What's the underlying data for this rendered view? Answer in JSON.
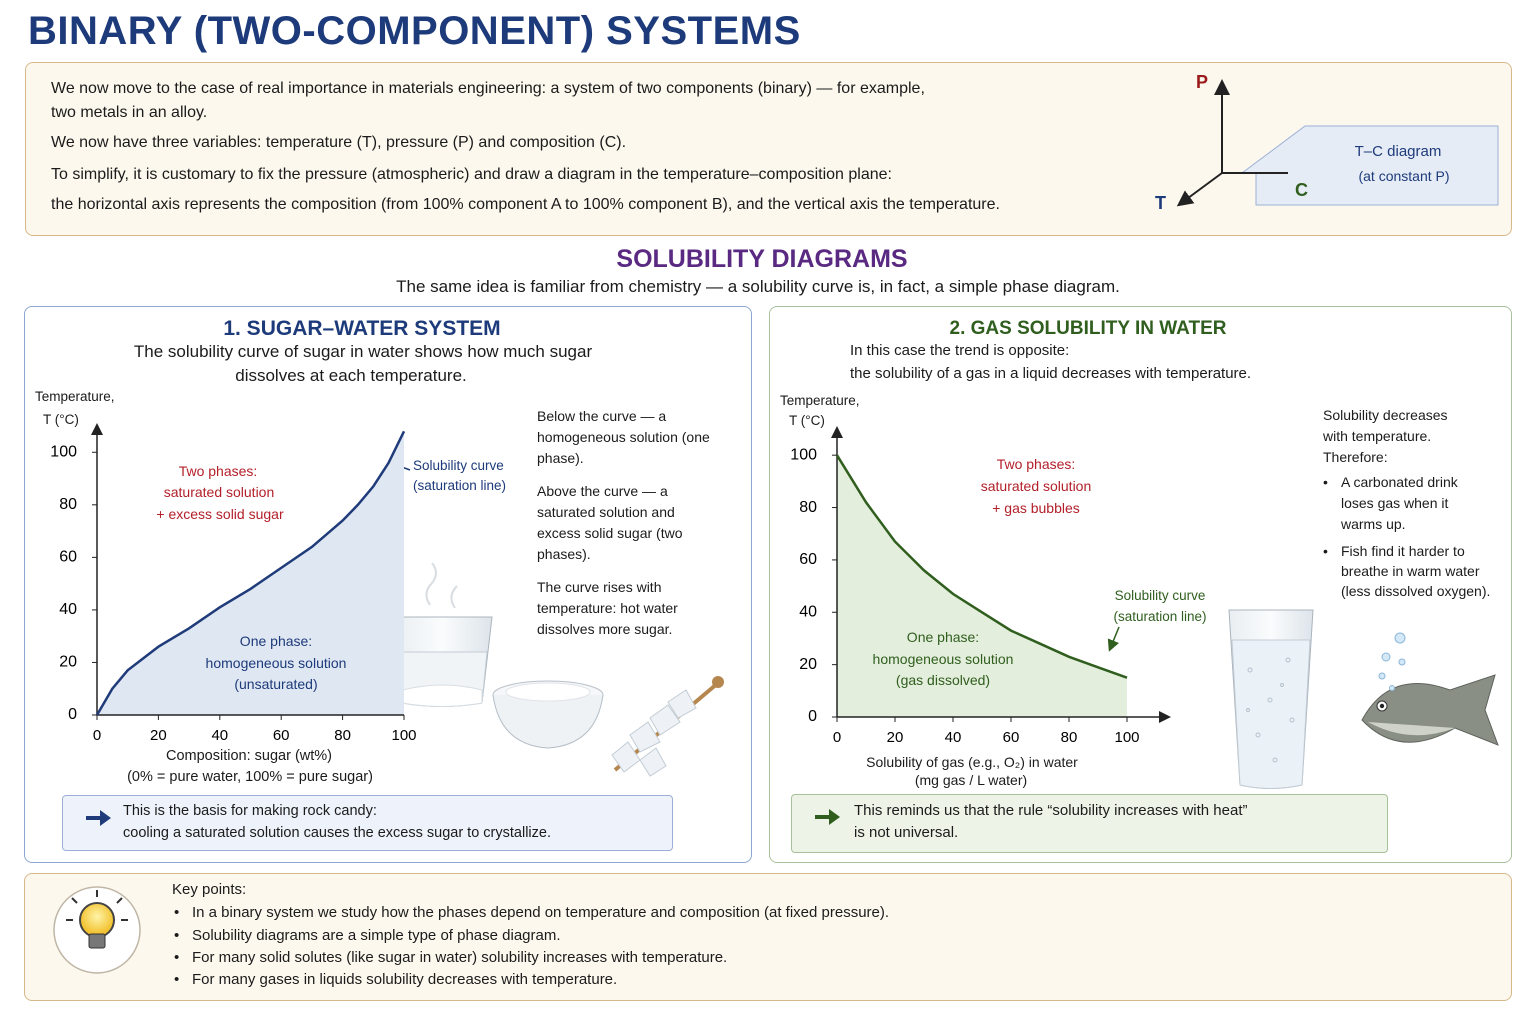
{
  "title": "BINARY (TWO-COMPONENT) SYSTEMS",
  "intro": {
    "lines": [
      "We now move to the case of real importance in materials engineering: a system of two components (binary) — for example,",
      "two metals in an alloy.",
      "We now have three variables: temperature (T), pressure (P) and composition (C).",
      "To simplify, it is customary to fix the pressure (atmospheric) and draw a diagram in the temperature–composition plane:",
      "the horizontal axis represents the composition (from 100% component A to 100% component B), and the vertical axis the temperature."
    ],
    "diagram": {
      "p_axis": "P",
      "t_axis": "T",
      "c_axis": "C",
      "label": "T–C diagram",
      "sublabel": "(at constant P)"
    }
  },
  "section": {
    "title": "SOLUBILITY DIAGRAMS",
    "subtitle": "The same idea is familiar from chemistry — a solubility curve is, in fact, a simple phase diagram."
  },
  "panels": [
    {
      "title": "1. SUGAR–WATER SYSTEM",
      "description": [
        "The solubility curve of sugar in water shows how much sugar",
        "dissolves at each temperature."
      ],
      "chart": {
        "type": "line",
        "y_label": [
          "Temperature,",
          "T (°C)"
        ],
        "x_label": [
          "Composition: sugar (wt%)",
          "(0% = pure water, 100% = pure sugar)"
        ],
        "xlim": [
          0,
          100
        ],
        "ylim": [
          0,
          110
        ],
        "xticks": [
          0,
          20,
          40,
          60,
          80,
          100
        ],
        "yticks": [
          0,
          20,
          40,
          60,
          80,
          100
        ],
        "color": "#1f3b7a",
        "fill": "#dfe7f3",
        "curve": {
          "x": [
            0,
            5,
            10,
            20,
            30,
            40,
            50,
            60,
            70,
            80,
            85,
            90,
            95,
            100
          ],
          "y": [
            0,
            10,
            17,
            26,
            33,
            41,
            48,
            56,
            64,
            74,
            80,
            87,
            96,
            108
          ]
        },
        "annotations": {
          "upper": [
            "Two phases:",
            "saturated solution",
            "+ excess solid sugar"
          ],
          "lower": [
            "One phase:",
            "homogeneous solution",
            "(unsaturated)"
          ],
          "curve": [
            "Solubility curve",
            "(saturation line)"
          ]
        }
      },
      "notes": [
        "Below the curve — a homogeneous solution (one phase).",
        "Above the curve — a saturated solution and excess solid sugar (two phases).",
        "The curve rises with temperature: hot water dissolves more sugar."
      ],
      "callout": [
        "This is the basis for making rock candy:",
        "cooling a saturated solution causes the excess sugar to crystallize."
      ]
    },
    {
      "title": "2. GAS SOLUBILITY IN WATER",
      "description": [
        "In this case the trend is opposite:",
        "the solubility of a gas in a liquid decreases with temperature."
      ],
      "chart": {
        "type": "line",
        "y_label": [
          "Temperature,",
          "T (°C)"
        ],
        "x_label": [
          "Solubility of gas (e.g., O₂) in water",
          "(mg gas / L water)"
        ],
        "xlim": [
          0,
          100
        ],
        "ylim": [
          0,
          110
        ],
        "xticks": [
          0,
          20,
          40,
          60,
          80,
          100
        ],
        "yticks": [
          0,
          20,
          40,
          60,
          80,
          100
        ],
        "color": "#2f5e1e",
        "fill": "#e4eedc",
        "curve": {
          "x": [
            0,
            10,
            20,
            30,
            40,
            50,
            60,
            70,
            80,
            90,
            100
          ],
          "y": [
            100,
            82,
            67,
            56,
            47,
            40,
            33,
            28,
            23,
            19,
            15
          ]
        },
        "annotations": {
          "upper": [
            "Two phases:",
            "saturated solution",
            "+ gas bubbles"
          ],
          "lower": [
            "One phase:",
            "homogeneous solution",
            "(gas dissolved)"
          ],
          "curve": [
            "Solubility curve",
            "(saturation line)"
          ]
        }
      },
      "notes": [
        "Solubility decreases with temperature.",
        "Therefore:"
      ],
      "bullets": [
        "A carbonated drink loses gas when it warms up.",
        "Fish find it harder to breathe in warm water (less dissolved oxygen)."
      ],
      "callout": [
        "This reminds us that the rule “solubility increases with heat”",
        "is not universal."
      ]
    }
  ],
  "key_points": {
    "heading": "Key points:",
    "items": [
      "In a binary system we study how the phases depend on temperature and composition (at fixed pressure).",
      "Solubility diagrams are a simple type of phase diagram.",
      "For many solid solutes (like sugar in water) solubility increases with temperature.",
      "For many gases in liquids solubility decreases with temperature."
    ]
  }
}
